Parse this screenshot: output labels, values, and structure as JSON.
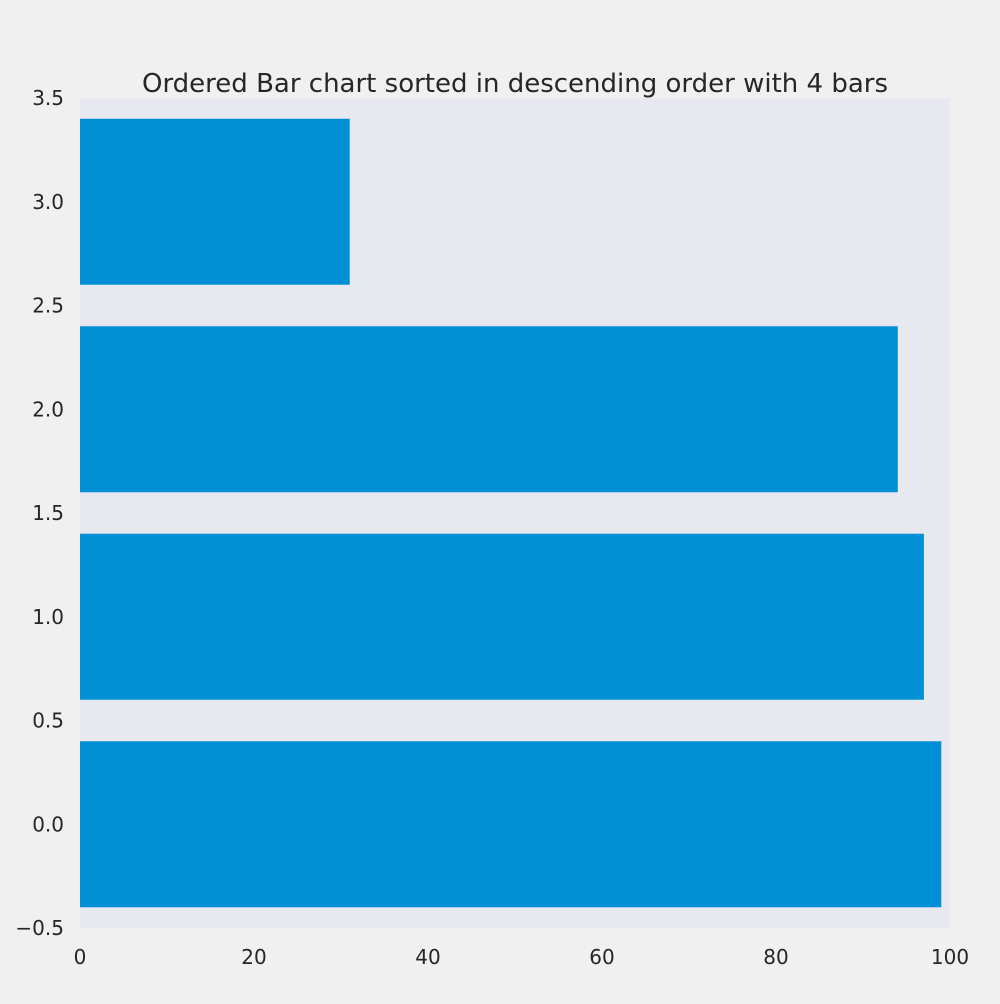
{
  "chart_data": {
    "type": "bar",
    "orientation": "horizontal",
    "title": "Ordered Bar chart sorted in descending order with 4 bars",
    "xlabel": "",
    "ylabel": "",
    "categories": [
      0,
      1,
      2,
      3
    ],
    "values": [
      99,
      97,
      94,
      31
    ],
    "xlim": [
      0,
      100
    ],
    "ylim": [
      -0.5,
      3.5
    ],
    "xticks": [
      0,
      20,
      40,
      60,
      80,
      100
    ],
    "xtick_labels": [
      "0",
      "20",
      "40",
      "60",
      "80",
      "100"
    ],
    "yticks": [
      -0.5,
      0.0,
      0.5,
      1.0,
      1.5,
      2.0,
      2.5,
      3.0,
      3.5
    ],
    "ytick_labels": [
      "−0.5",
      "0.0",
      "0.5",
      "1.0",
      "1.5",
      "2.0",
      "2.5",
      "3.0",
      "3.5"
    ],
    "bar_color": "#008fd5",
    "plot_background": "#e8e8f0",
    "figure_background": "#f0f0f0",
    "grid": false,
    "legend": "none"
  }
}
